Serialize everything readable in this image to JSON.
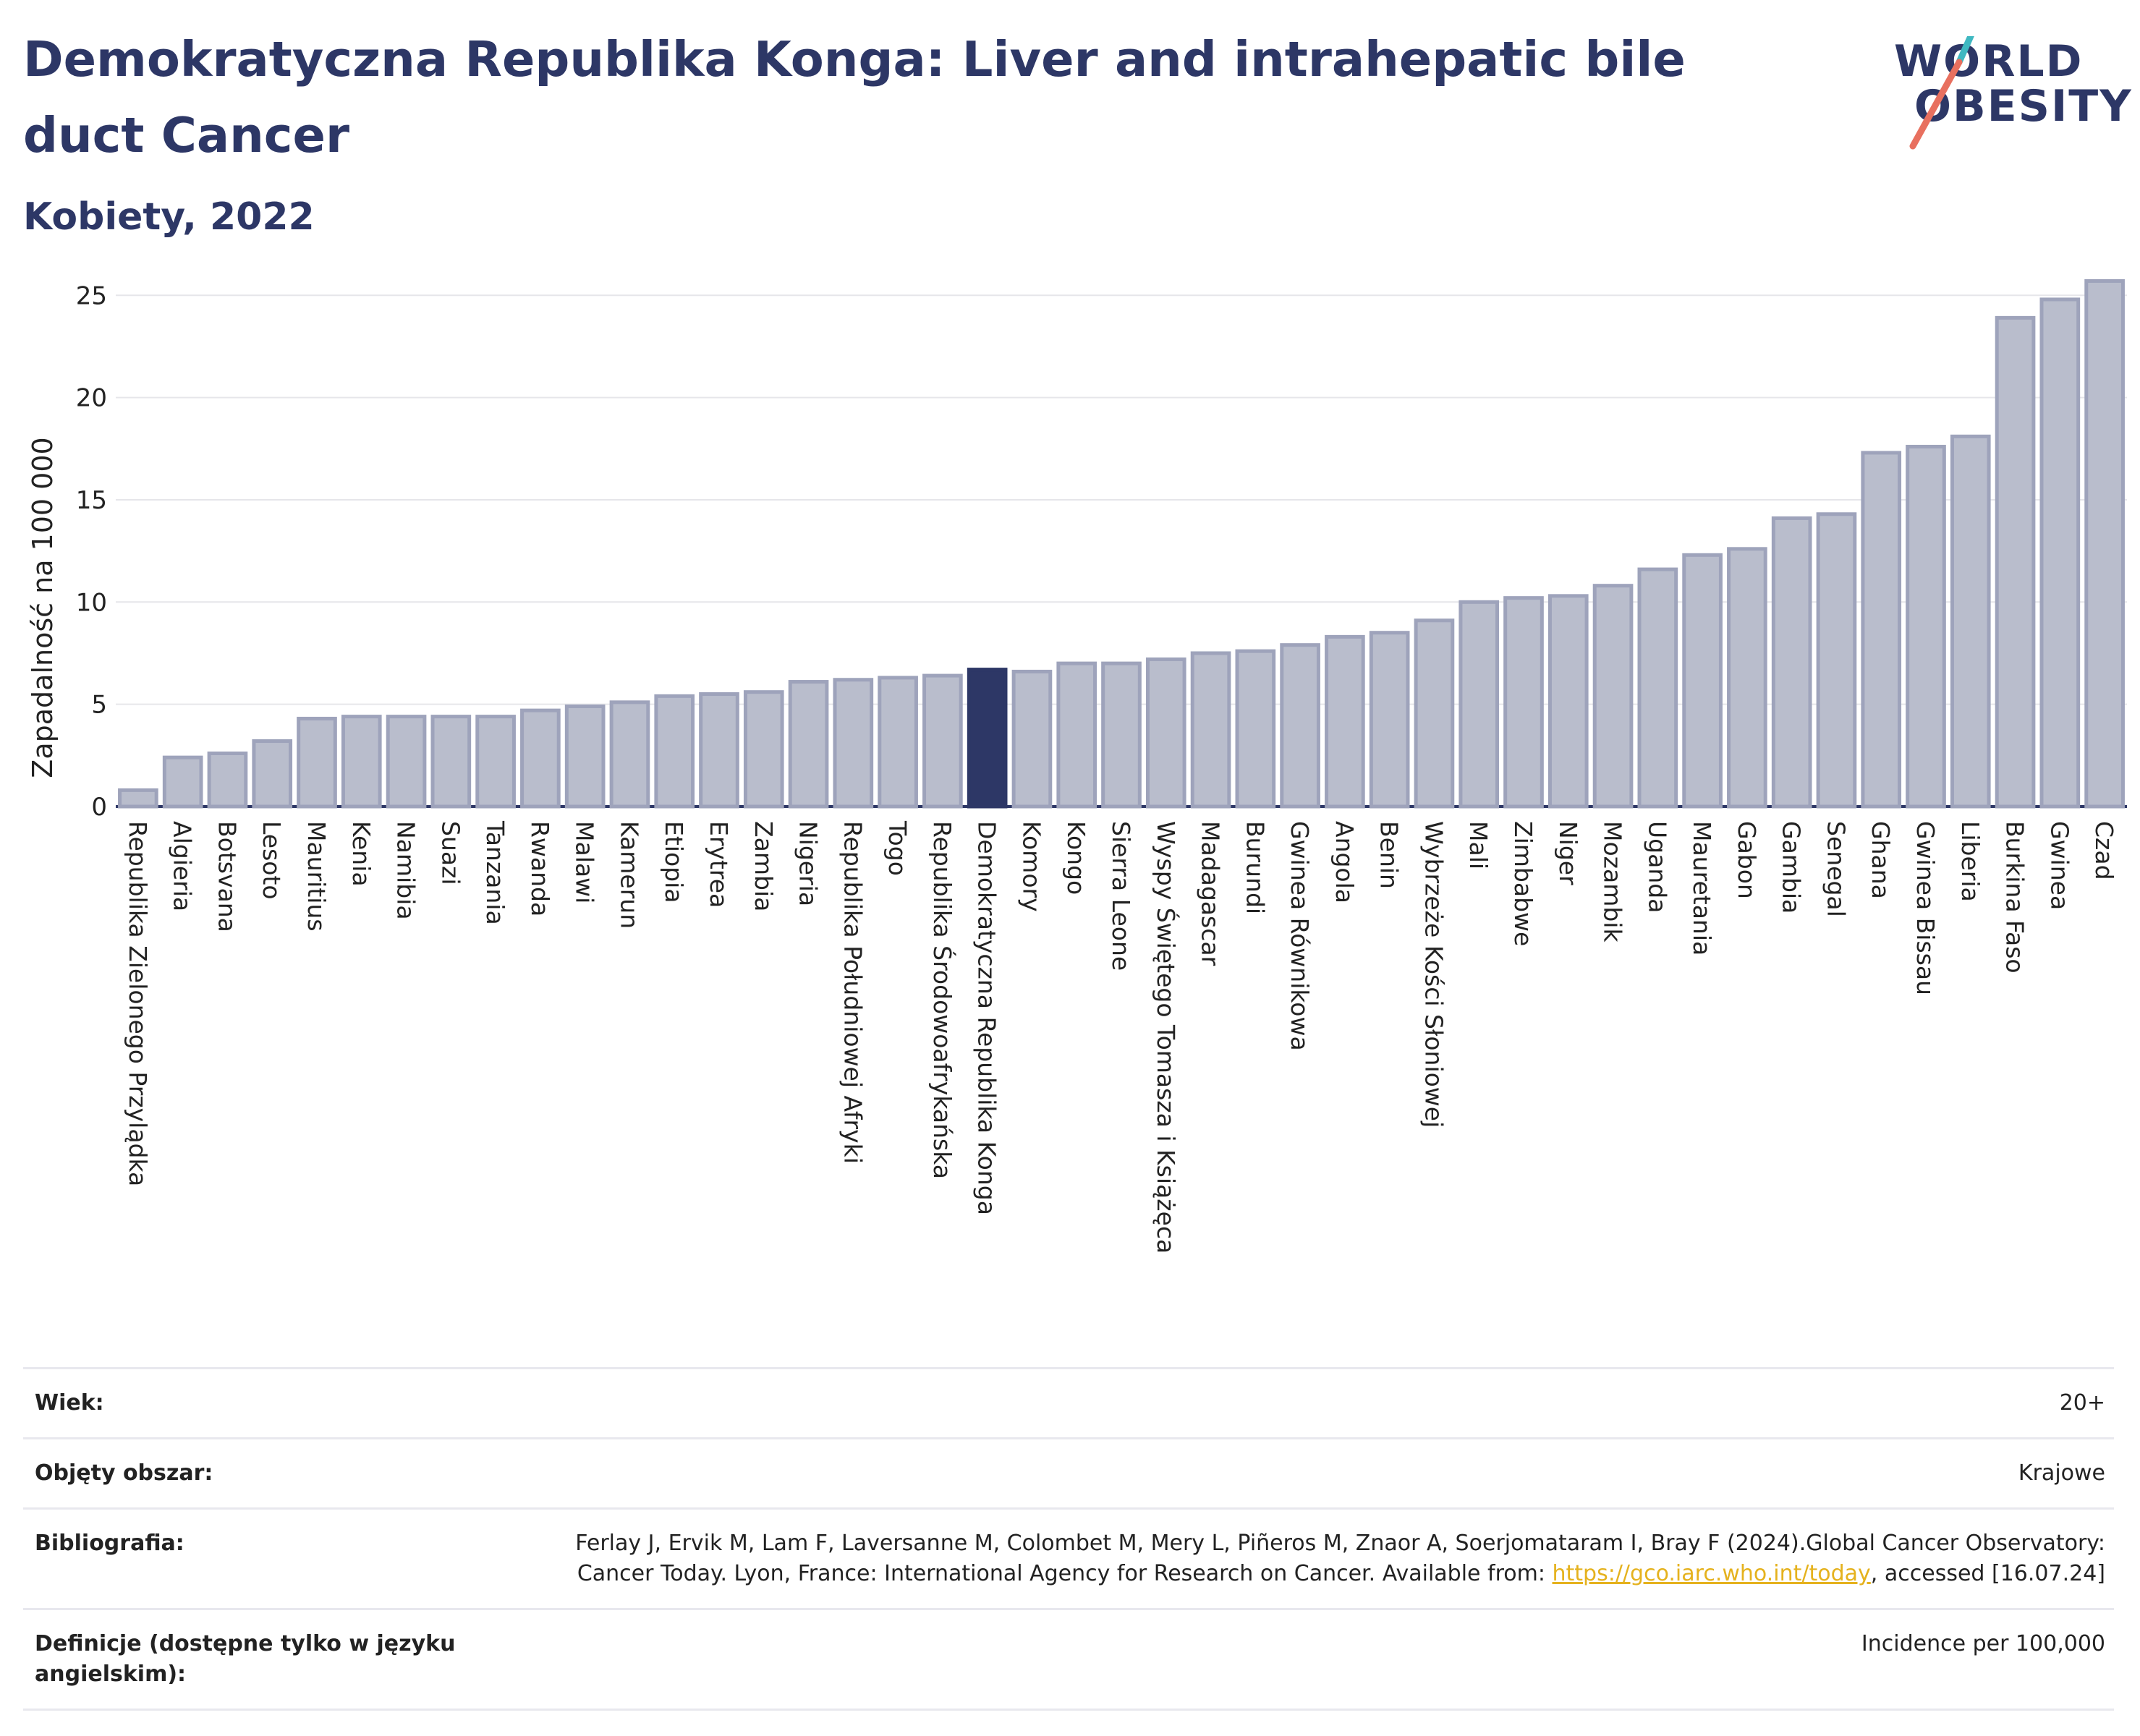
{
  "header": {
    "title": "Demokratyczna Republika Konga: Liver and intrahepatic bile duct Cancer",
    "subtitle": "Kobiety, 2022"
  },
  "logo": {
    "line1": "WORLD",
    "line2": "OBESITY"
  },
  "colors": {
    "bar": "#b9bdcc",
    "bar_border": "#9ea3bb",
    "highlight": "#2d3766",
    "text": "#2d3766",
    "logo_slash_top": "#3fb8c1",
    "logo_slash_bottom": "#e8705f"
  },
  "chart_data": {
    "type": "bar",
    "ylabel": "Zapadalność na 100 000",
    "ylim": [
      0,
      26
    ],
    "yticks": [
      0,
      5,
      10,
      15,
      20,
      25
    ],
    "grid": true,
    "highlight": "Demokratyczna Republika Konga",
    "categories": [
      "Republika Zielonego Przylądka",
      "Algieria",
      "Botsvana",
      "Lesoto",
      "Mauritius",
      "Kenia",
      "Namibia",
      "Suazi",
      "Tanzania",
      "Rwanda",
      "Malawi",
      "Kamerun",
      "Etiopia",
      "Erytrea",
      "Zambia",
      "Nigeria",
      "Republika Południowej Afryki",
      "Togo",
      "Republika Środowoafrykańska",
      "Demokratyczna Republika Konga",
      "Komory",
      "Kongo",
      "Sierra Leone",
      "Wyspy Świętego Tomasza i Książęca",
      "Madagascar",
      "Burundi",
      "Gwinea Równikowa",
      "Angola",
      "Benin",
      "Wybrzeże Kości Słoniowej",
      "Mali",
      "Zimbabwe",
      "Niger",
      "Mozambik",
      "Uganda",
      "Mauretania",
      "Gabon",
      "Gambia",
      "Senegal",
      "Ghana",
      "Gwinea Bissau",
      "Liberia",
      "Burkina Faso",
      "Gwinea",
      "Czad"
    ],
    "values": [
      0.8,
      2.4,
      2.6,
      3.2,
      4.3,
      4.4,
      4.4,
      4.4,
      4.4,
      4.7,
      4.9,
      5.1,
      5.4,
      5.5,
      5.6,
      6.1,
      6.2,
      6.3,
      6.4,
      6.7,
      6.6,
      7.0,
      7.0,
      7.2,
      7.5,
      7.6,
      7.9,
      8.3,
      8.5,
      9.1,
      10.0,
      10.2,
      10.3,
      10.8,
      11.6,
      12.3,
      12.6,
      14.1,
      14.3,
      17.3,
      17.6,
      18.1,
      23.9,
      24.8,
      25.7
    ]
  },
  "meta": [
    {
      "label": "Wiek:",
      "value": "20+"
    },
    {
      "label": "Objęty obszar:",
      "value": "Krajowe"
    },
    {
      "label": "Bibliografia:",
      "value_pre": "Ferlay J, Ervik M, Lam F, Laversanne M, Colombet M, Mery L, Piñeros M, Znaor A, Soerjomataram I, Bray F (2024).Global Cancer Observatory: Cancer Today. Lyon, France: International Agency for Research on Cancer. Available from: ",
      "link": "https://gco.iarc.who.int/today",
      "value_post": ", accessed [16.07.24]"
    },
    {
      "label": "Definicje (dostępne tylko w języku angielskim):",
      "value": "Incidence per 100,000"
    }
  ]
}
